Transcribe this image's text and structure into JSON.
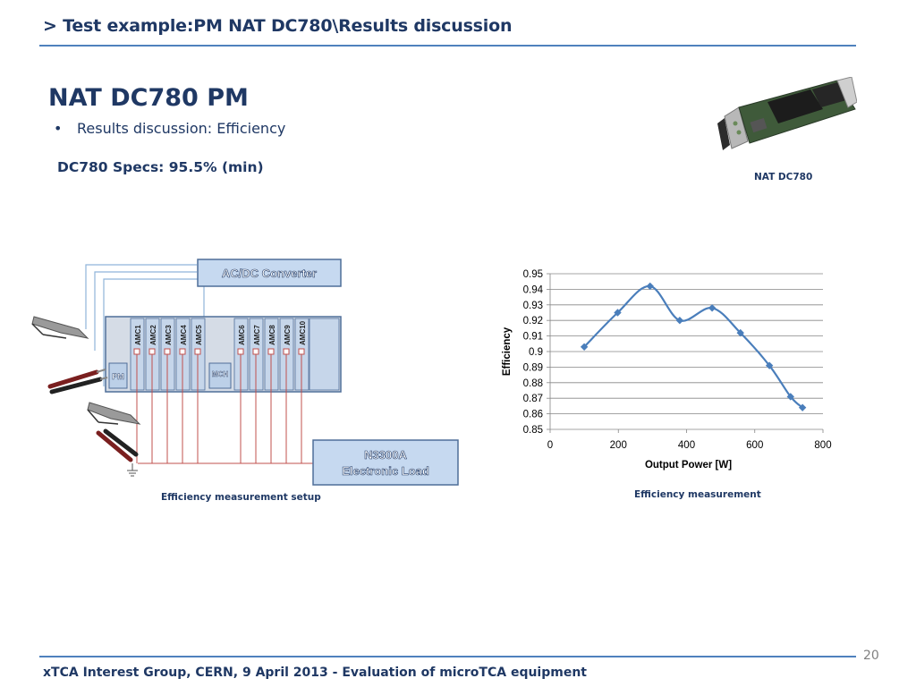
{
  "header": {
    "title": "> Test example:PM NAT DC780\\Results discussion"
  },
  "slide": {
    "title": "NAT DC780 PM",
    "bullet": "Results discussion: Efficiency",
    "specs": "DC780 Specs: 95.5% (min)"
  },
  "board": {
    "caption": "NAT DC780"
  },
  "setup": {
    "caption": "Efficiency measurement setup",
    "converter_label": "AC/DC Converter",
    "load_line1": "N3300A",
    "load_line2": "Electronic Load",
    "pm_label": "PM",
    "mch_label": "MCH",
    "amc_labels": [
      "AMC1",
      "AMC2",
      "AMC3",
      "AMC4",
      "AMC5",
      "AMC6",
      "AMC7",
      "AMC8",
      "AMC9",
      "AMC10"
    ]
  },
  "chart_data": {
    "type": "scatter",
    "title": "",
    "xlabel": "Output Power [W]",
    "ylabel": "Efficiency",
    "xlim": [
      0,
      800
    ],
    "ylim": [
      0.85,
      0.95
    ],
    "x_ticks": [
      "0",
      "200",
      "400",
      "600",
      "800"
    ],
    "y_ticks": [
      "0.85",
      "0.86",
      "0.87",
      "0.88",
      "0.89",
      "0.9",
      "0.91",
      "0.92",
      "0.93",
      "0.94",
      "0.95"
    ],
    "grid": true,
    "legend": "none",
    "series": [
      {
        "x": [
          100,
          198,
          293,
          380,
          475,
          558,
          643,
          705,
          740
        ],
        "y": [
          0.903,
          0.925,
          0.942,
          0.92,
          0.928,
          0.912,
          0.891,
          0.871,
          0.864
        ]
      }
    ],
    "caption": "Efficiency measurement",
    "line_color": "#4a7ebb"
  },
  "footer": {
    "text": "xTCA Interest Group, CERN, 9 April 2013 - Evaluation of microTCA equipment",
    "page": "20"
  },
  "colors": {
    "title": "#1f3864",
    "rule": "#4f81bd",
    "series": "#4a7ebb"
  }
}
